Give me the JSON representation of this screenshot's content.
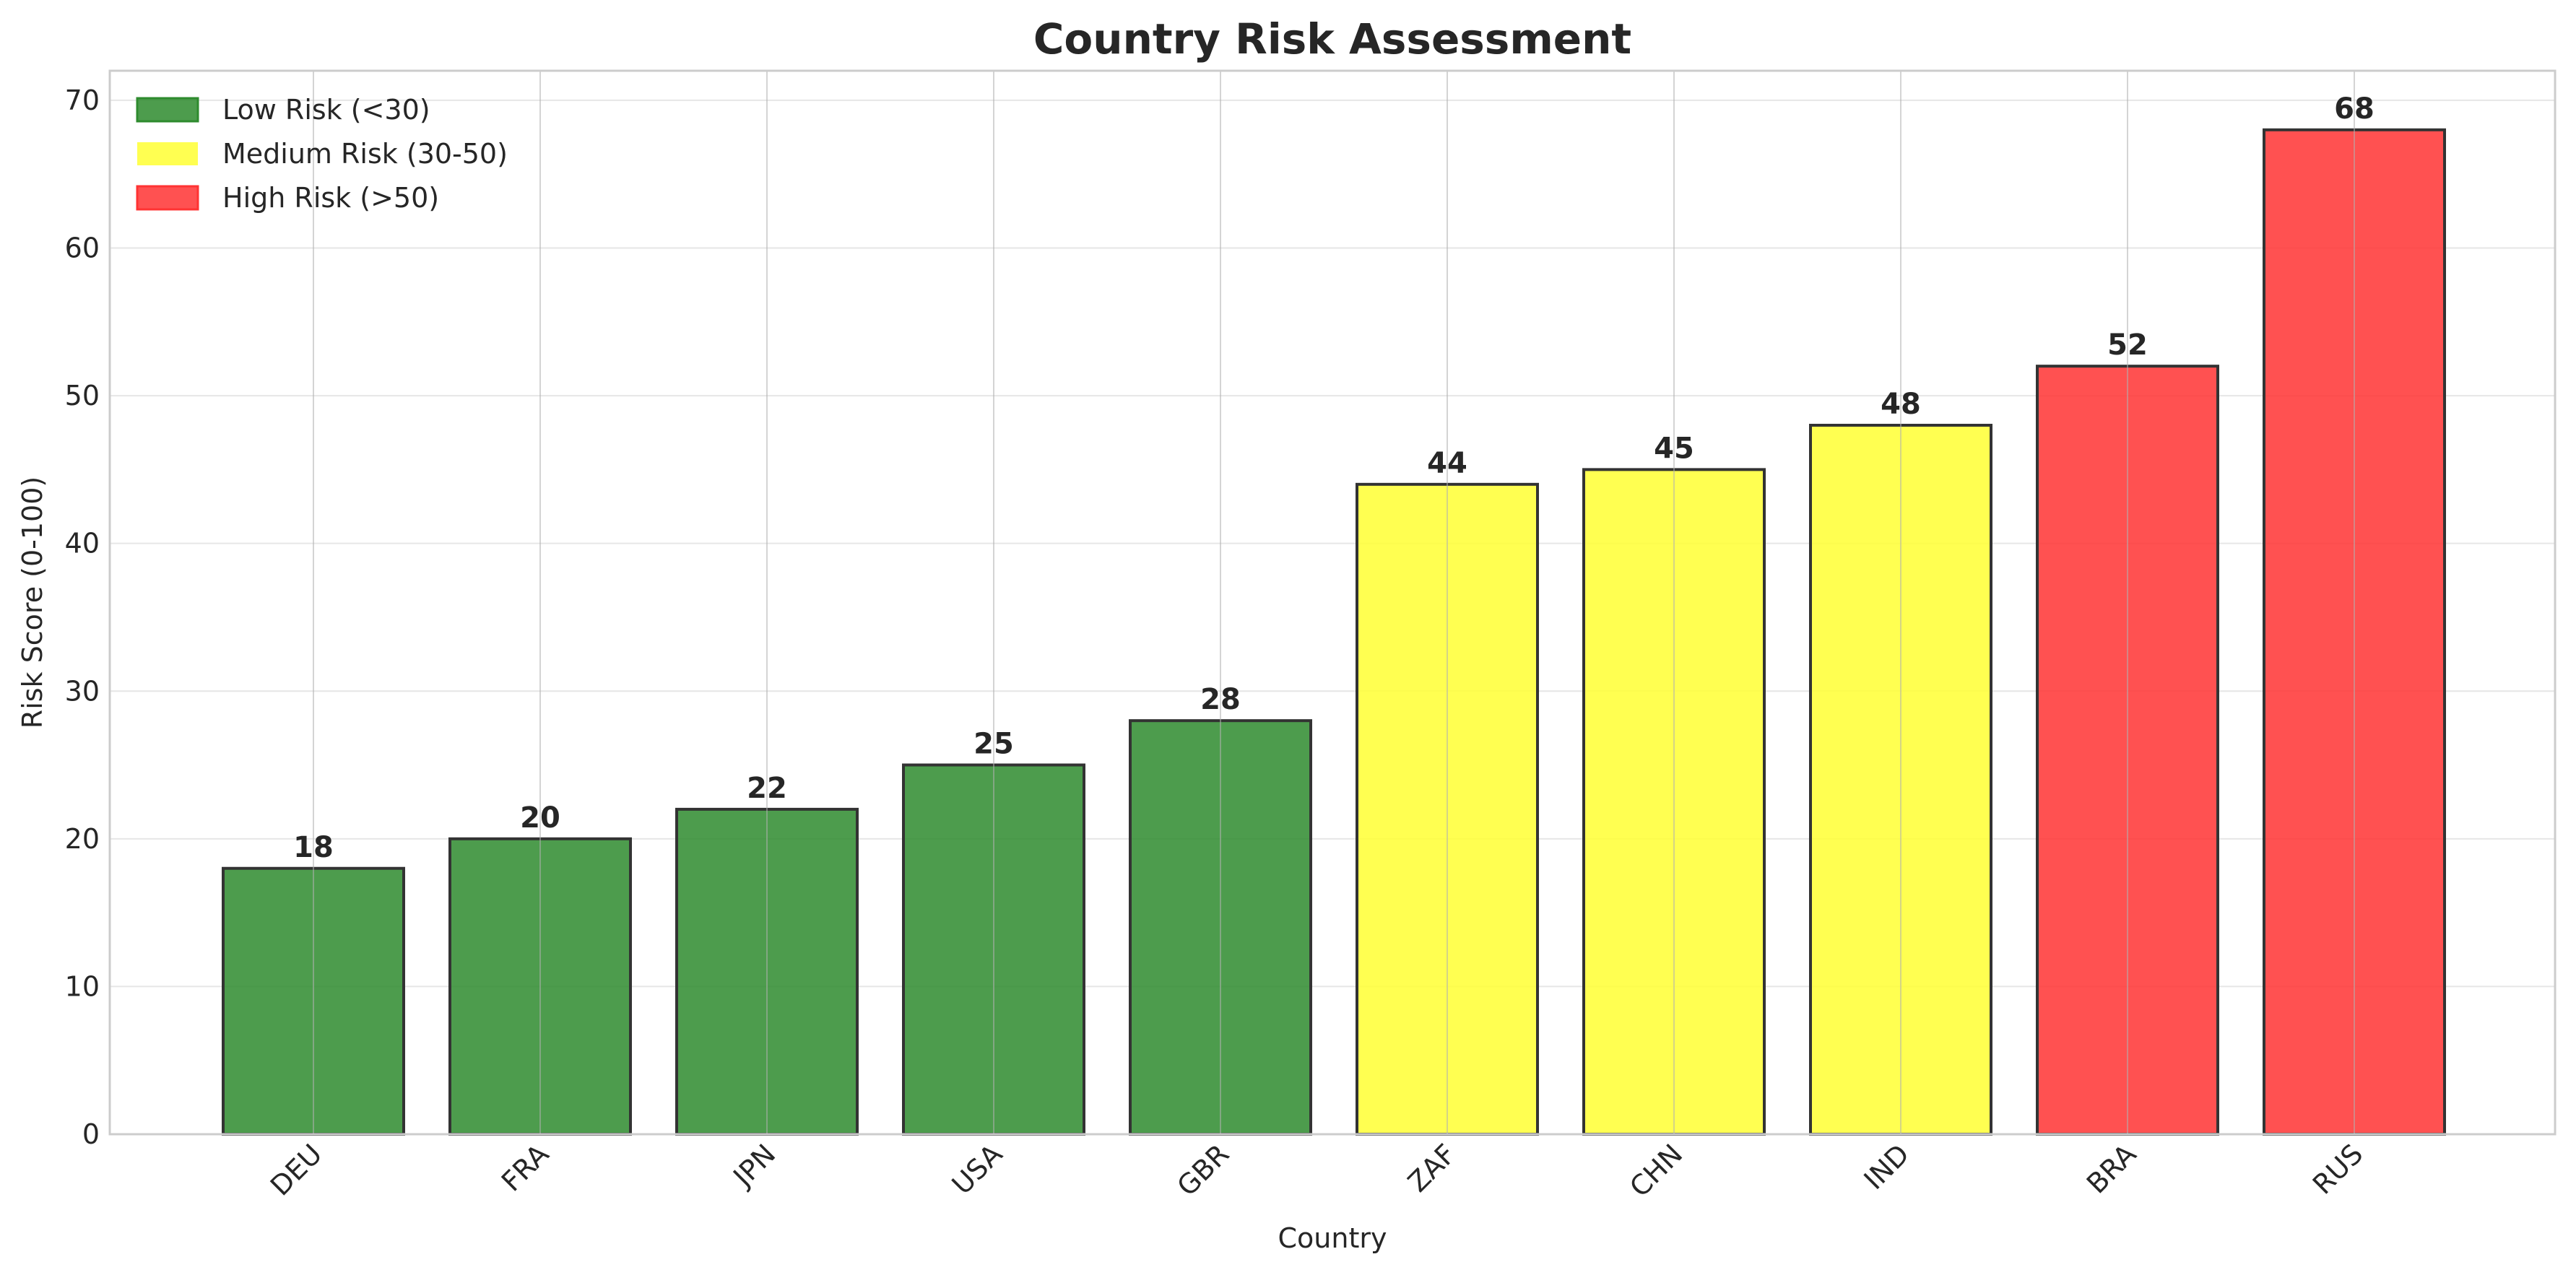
{
  "chart_data": {
    "type": "bar",
    "title": "Country Risk Assessment",
    "xlabel": "Country",
    "ylabel": "Risk Score (0-100)",
    "ylim": [
      0,
      72
    ],
    "yticks": [
      0,
      10,
      20,
      30,
      40,
      50,
      60,
      70
    ],
    "grid": true,
    "legend_position": "top-left",
    "categories": [
      "DEU",
      "FRA",
      "JPN",
      "USA",
      "GBR",
      "ZAF",
      "CHN",
      "IND",
      "BRA",
      "RUS"
    ],
    "values": [
      18,
      20,
      22,
      25,
      28,
      44,
      45,
      48,
      52,
      68
    ],
    "value_labels": [
      "18",
      "20",
      "22",
      "25",
      "28",
      "44",
      "45",
      "48",
      "52",
      "68"
    ],
    "risk_levels": [
      "low",
      "low",
      "low",
      "low",
      "low",
      "medium",
      "medium",
      "medium",
      "high",
      "high"
    ],
    "legend": [
      {
        "key": "low",
        "label": "Low Risk (<30)",
        "color": "#2e8b2e"
      },
      {
        "key": "medium",
        "label": "Medium Risk (30-50)",
        "color": "#ffff33"
      },
      {
        "key": "high",
        "label": "High Risk (>50)",
        "color": "#ff3333"
      }
    ],
    "colors": {
      "low": "#2e8b2e",
      "medium": "#ffff33",
      "high": "#ff3333",
      "bar_edge": "#333333",
      "grid": "#e6e6e6",
      "axes_edge": "#cccccc",
      "text": "#262626"
    }
  }
}
